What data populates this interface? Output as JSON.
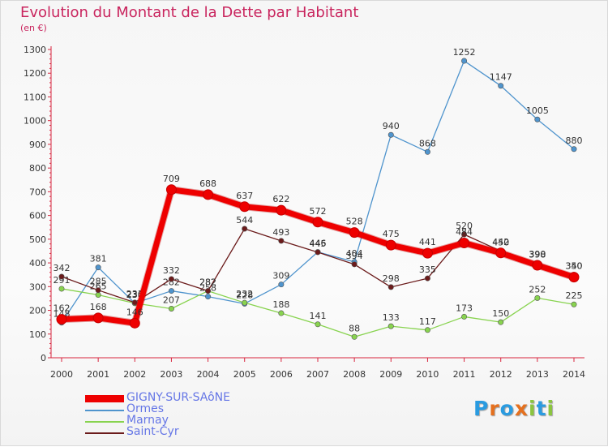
{
  "title": "Evolution du Montant de la Dette par Habitant",
  "unit": "(en €)",
  "logo": {
    "text": "Proxiti",
    "letters": [
      "P",
      "r",
      "o",
      "x",
      "i",
      "t",
      "i"
    ],
    "colors": [
      "#2a9be0",
      "#e5701e",
      "#2a9be0",
      "#e5701e",
      "#8bc53f",
      "#2a9be0",
      "#8bc53f"
    ]
  },
  "chart_data": {
    "type": "line",
    "title": "Evolution du Montant de la Dette par Habitant",
    "ylabel": "(en €)",
    "xlabel": "",
    "x": [
      "2000",
      "2001",
      "2002",
      "2003",
      "2004",
      "2005",
      "2006",
      "2007",
      "2008",
      "2009",
      "2010",
      "2011",
      "2012",
      "2013",
      "2014"
    ],
    "ylim": [
      0,
      1300
    ],
    "yticks": [
      0,
      100,
      200,
      300,
      400,
      500,
      600,
      700,
      800,
      900,
      1000,
      1100,
      1200,
      1300
    ],
    "grid": false,
    "legend_position": "bottom-left",
    "series": [
      {
        "name": "GIGNY-SUR-SAôNE",
        "color": "#ee0000",
        "values": [
          162,
          168,
          146,
          709,
          688,
          637,
          622,
          572,
          528,
          475,
          441,
          484,
          442,
          390,
          340
        ]
      },
      {
        "name": "Ormes",
        "color": "#4f94cd",
        "values": [
          148,
          381,
          230,
          282,
          258,
          228,
          309,
          446,
          404,
          940,
          868,
          1252,
          1147,
          1005,
          880
        ]
      },
      {
        "name": "Marnay",
        "color": "#88d34f",
        "values": [
          291,
          265,
          230,
          207,
          282,
          232,
          188,
          141,
          88,
          133,
          117,
          173,
          150,
          252,
          225
        ]
      },
      {
        "name": "Saint-Cyr",
        "color": "#6b1b1b",
        "values": [
          342,
          285,
          233,
          332,
          282,
          544,
          493,
          445,
          394,
          298,
          335,
          520,
          450,
          398,
          350
        ]
      }
    ]
  }
}
